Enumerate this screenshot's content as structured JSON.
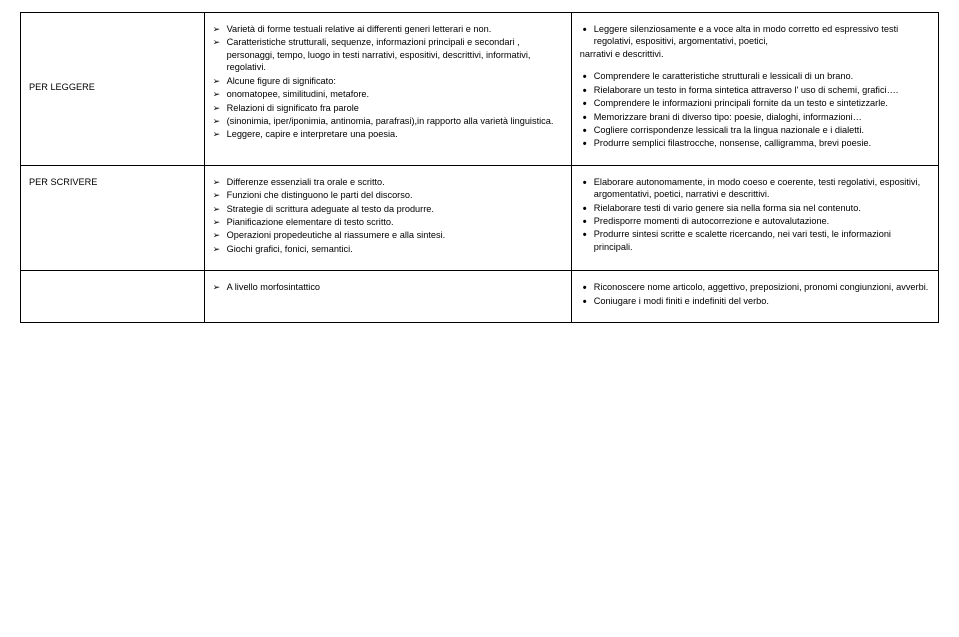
{
  "rows": [
    {
      "label": "PER LEGGERE",
      "labelAlign": "mid",
      "col2": [
        "Varietà di forme testuali relative ai differenti generi letterari e non.",
        "Caratteristiche strutturali, sequenze, informazioni principali e secondari , personaggi, tempo, luogo in testi narrativi, espositivi, descrittivi, informativi, regolativi.",
        "Alcune figure di significato:",
        "onomatopee, similitudini, metafore.",
        "Relazioni di significato fra parole",
        "(sinonimia, iper/iponimia, antinomia, parafrasi),in rapporto alla varietà linguistica.",
        "Leggere, capire e interpretare una poesia."
      ],
      "col3": [
        "Leggere silenziosamente e a voce alta in modo corretto ed espressivo testi regolativi, espositivi, argomentativi, poetici,",
        "narrativi e descrittivi.",
        "",
        "Comprendere le caratteristiche strutturali e lessicali di un brano.",
        "Rielaborare un testo in forma sintetica  attraverso l' uso di schemi, grafici….",
        "Comprendere le informazioni principali fornite da un testo e sintetizzarle.",
        "Memorizzare brani di diverso tipo: poesie, dialoghi, informazioni…",
        "Cogliere corrispondenze lessicali tra la lingua nazionale e i dialetti.",
        "Produrre semplici filastrocche, nonsense, calligramma, brevi poesie."
      ],
      "col3Merge": {
        "0": 2
      }
    },
    {
      "label": "PER SCRIVERE",
      "labelAlign": "top",
      "col2": [
        "Differenze essenziali tra orale e scritto.",
        "Funzioni che distinguono le parti del discorso.",
        "Strategie di scrittura adeguate al testo da produrre.",
        "Pianificazione elementare di testo scritto.",
        "Operazioni propedeutiche al riassumere e alla sintesi.",
        "Giochi grafici, fonici, semantici."
      ],
      "col3": [
        "Elaborare autonomamente, in modo coeso e coerente, testi regolativi, espositivi, argomentativi, poetici, narrativi e descrittivi.",
        "Rielaborare testi di vario genere sia nella forma  sia nel contenuto.",
        "Predisporre momenti di autocorrezione e autovalutazione.",
        "Produrre sintesi scritte e scalette ricercando, nei vari testi, le informazioni principali."
      ]
    },
    {
      "label": "",
      "labelAlign": "top",
      "col2": [
        "A livello morfosintattico"
      ],
      "col3": [
        "Riconoscere nome articolo, aggettivo, preposizioni, pronomi congiunzioni, avverbi.",
        "Coniugare i modi finiti e indefiniti del verbo."
      ]
    }
  ]
}
